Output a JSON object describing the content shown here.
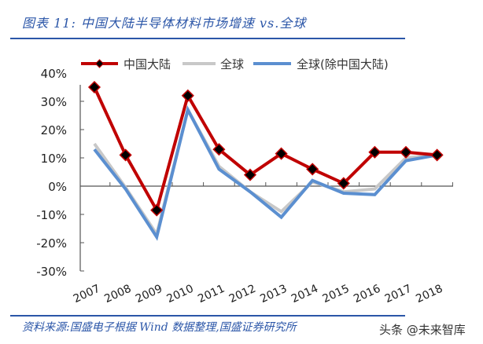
{
  "header": {
    "title": "图表 11:  中国大陆半导体材料市场增速 vs.全球"
  },
  "footer": {
    "source": "资料来源:国盛电子根据 Wind 数据整理,国盛证券研究所",
    "watermark": "头条 @未来智库"
  },
  "colors": {
    "china": "#c00000",
    "global": "#c8c8c8",
    "global_ex_china": "#5b8fd0",
    "accent": "#2b56a8",
    "axis": "#555555"
  },
  "chart_data": {
    "type": "line",
    "title": "中国大陆半导体材料市场增速 vs.全球",
    "xlabel": "",
    "ylabel": "",
    "ylim": [
      -0.3,
      0.4
    ],
    "yticks": [
      "40%",
      "30%",
      "20%",
      "10%",
      "0%",
      "-10%",
      "-20%",
      "-30%"
    ],
    "grid": false,
    "legend_position": "top",
    "categories": [
      "2007",
      "2008",
      "2009",
      "2010",
      "2011",
      "2012",
      "2013",
      "2014",
      "2015",
      "2016",
      "2017",
      "2018"
    ],
    "series": [
      {
        "name": "中国大陆",
        "marker": "diamond",
        "values": [
          0.35,
          0.11,
          -0.085,
          0.32,
          0.13,
          0.04,
          0.115,
          0.06,
          0.01,
          0.12,
          0.12,
          0.11
        ]
      },
      {
        "name": "全球",
        "marker": "none",
        "values": [
          0.15,
          -0.005,
          -0.17,
          0.27,
          0.07,
          -0.02,
          -0.09,
          0.015,
          -0.02,
          -0.01,
          0.1,
          0.11
        ]
      },
      {
        "name": "全球(除中国大陆)",
        "marker": "none",
        "values": [
          0.13,
          -0.01,
          -0.18,
          0.27,
          0.06,
          -0.02,
          -0.11,
          0.02,
          -0.025,
          -0.03,
          0.09,
          0.11
        ]
      }
    ]
  }
}
